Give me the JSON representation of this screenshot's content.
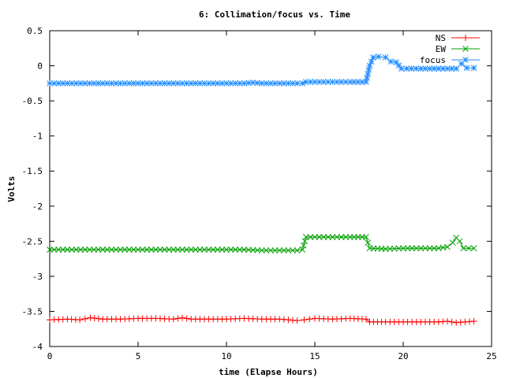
{
  "chart_data": {
    "type": "line",
    "title": "6: Collimation/focus vs. Time",
    "xlabel": "time (Elapse Hours)",
    "ylabel": "Volts",
    "xlim": [
      0,
      25
    ],
    "ylim": [
      -4,
      0.5
    ],
    "xticks": [
      0,
      5,
      10,
      15,
      20,
      25
    ],
    "xtick_labels": [
      "0",
      "5",
      "10",
      "15",
      "20",
      "25"
    ],
    "yticks": [
      0.5,
      0,
      -0.5,
      -1,
      -1.5,
      -2,
      -2.5,
      -3,
      -3.5,
      -4
    ],
    "ytick_labels": [
      "0.5",
      "0",
      "-0.5",
      "-1",
      "-1.5",
      "-2",
      "-2.5",
      "-3",
      "-3.5",
      "-4"
    ],
    "grid": false,
    "legend_position": "top-right",
    "series": [
      {
        "name": "NS",
        "color": "#ff0000",
        "marker": "plus",
        "x": [
          0,
          1,
          1.7,
          2.3,
          3,
          4,
          5,
          6,
          7,
          7.5,
          8,
          9,
          10,
          11,
          12,
          13,
          14,
          14.4,
          15,
          16,
          17,
          17.9,
          18.1,
          19,
          20,
          21,
          22,
          22.5,
          23,
          23.5,
          24
        ],
        "y": [
          -3.62,
          -3.61,
          -3.62,
          -3.59,
          -3.61,
          -3.61,
          -3.6,
          -3.6,
          -3.61,
          -3.59,
          -3.61,
          -3.61,
          -3.61,
          -3.6,
          -3.61,
          -3.61,
          -3.63,
          -3.62,
          -3.6,
          -3.61,
          -3.6,
          -3.61,
          -3.65,
          -3.65,
          -3.65,
          -3.65,
          -3.65,
          -3.64,
          -3.66,
          -3.65,
          -3.64
        ]
      },
      {
        "name": "EW",
        "color": "#00a000",
        "marker": "cross",
        "x": [
          0,
          2,
          4,
          6,
          8,
          10,
          11,
          12,
          13,
          14,
          14.3,
          14.5,
          15,
          16,
          17,
          17.9,
          18.1,
          19,
          20,
          21,
          22,
          22.5,
          22.8,
          23,
          23.2,
          23.4,
          24
        ],
        "y": [
          -2.62,
          -2.62,
          -2.62,
          -2.62,
          -2.62,
          -2.62,
          -2.62,
          -2.63,
          -2.63,
          -2.63,
          -2.62,
          -2.44,
          -2.44,
          -2.44,
          -2.44,
          -2.44,
          -2.6,
          -2.61,
          -2.6,
          -2.6,
          -2.6,
          -2.58,
          -2.52,
          -2.45,
          -2.5,
          -2.6,
          -2.6
        ]
      },
      {
        "name": "focus",
        "color": "#1e8cff",
        "marker": "star",
        "x": [
          0,
          2,
          4,
          6,
          8,
          10,
          11,
          11.5,
          12,
          13,
          14,
          14.3,
          14.5,
          15,
          16,
          17,
          17.9,
          18.1,
          18.3,
          18.6,
          19,
          19.3,
          19.6,
          19.9,
          20.2,
          21,
          22,
          23,
          23.3,
          23.6,
          24
        ],
        "y": [
          -0.25,
          -0.25,
          -0.25,
          -0.25,
          -0.25,
          -0.25,
          -0.25,
          -0.24,
          -0.25,
          -0.25,
          -0.25,
          -0.25,
          -0.23,
          -0.23,
          -0.23,
          -0.23,
          -0.23,
          0,
          0.12,
          0.13,
          0.12,
          0.06,
          0.05,
          -0.04,
          -0.04,
          -0.04,
          -0.04,
          -0.04,
          0.03,
          -0.03,
          -0.03
        ]
      }
    ]
  }
}
